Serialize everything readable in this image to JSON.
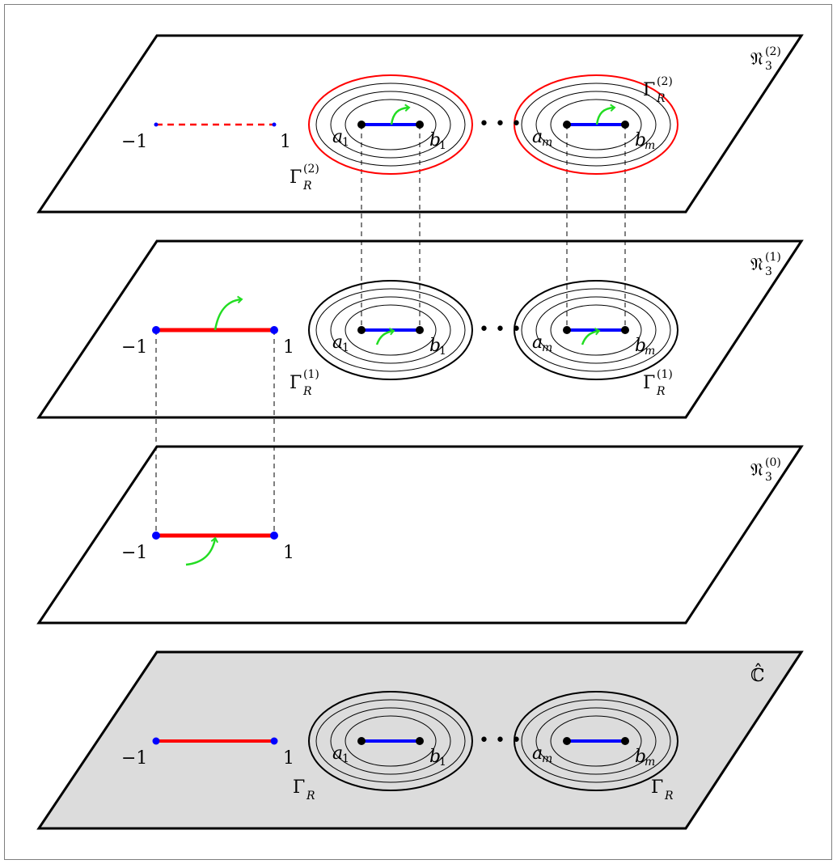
{
  "colors": {
    "plane_stroke": "#000000",
    "base_plane_fill": "#dcdcdc",
    "red_cut": "#ff0000",
    "blue_cut": "#0000ff",
    "arrow": "#22dd22",
    "endpoint_blue": "#0000ff",
    "endpoint_black": "#000000"
  },
  "planes": [
    {
      "sheet": "R3_2",
      "label_main": "𝔑",
      "label_sub": "3",
      "label_sup": "(2)",
      "minus_one": "−1",
      "one": "1",
      "a1": "a",
      "a1_sub": "1",
      "b1": "b",
      "b1_sub": "1",
      "am": "a",
      "am_sub": "m",
      "bm": "b",
      "bm_sub": "m",
      "ellipsis": "• • •",
      "gamma_left": "Γ",
      "gamma_left_sub": "R",
      "gamma_left_sup": "(2)",
      "gamma_right": "Γ",
      "gamma_right_sub": "R",
      "gamma_right_sup": "(2)",
      "red_cut_style": "dashed",
      "outer_ellipse_color": "red"
    },
    {
      "sheet": "R3_1",
      "label_main": "𝔑",
      "label_sub": "3",
      "label_sup": "(1)",
      "minus_one": "−1",
      "one": "1",
      "a1": "a",
      "a1_sub": "1",
      "b1": "b",
      "b1_sub": "1",
      "am": "a",
      "am_sub": "m",
      "bm": "b",
      "bm_sub": "m",
      "ellipsis": "• • •",
      "gamma_left": "Γ",
      "gamma_left_sub": "R",
      "gamma_left_sup": "(1)",
      "gamma_right": "Γ",
      "gamma_right_sub": "R",
      "gamma_right_sup": "(1)",
      "red_cut_style": "solid",
      "outer_ellipse_color": "black"
    },
    {
      "sheet": "R3_0",
      "label_main": "𝔑",
      "label_sub": "3",
      "label_sup": "(0)",
      "minus_one": "−1",
      "one": "1",
      "red_cut_style": "solid"
    },
    {
      "sheet": "C_hat",
      "label_main": "ℂ̂",
      "minus_one": "−1",
      "one": "1",
      "a1": "a",
      "a1_sub": "1",
      "b1": "b",
      "b1_sub": "1",
      "am": "a",
      "am_sub": "m",
      "bm": "b",
      "bm_sub": "m",
      "ellipsis": "• • •",
      "gamma_left": "Γ",
      "gamma_left_sub": "R",
      "gamma_right": "Γ",
      "gamma_right_sub": "R",
      "red_cut_style": "solid",
      "outer_ellipse_color": "black"
    }
  ]
}
